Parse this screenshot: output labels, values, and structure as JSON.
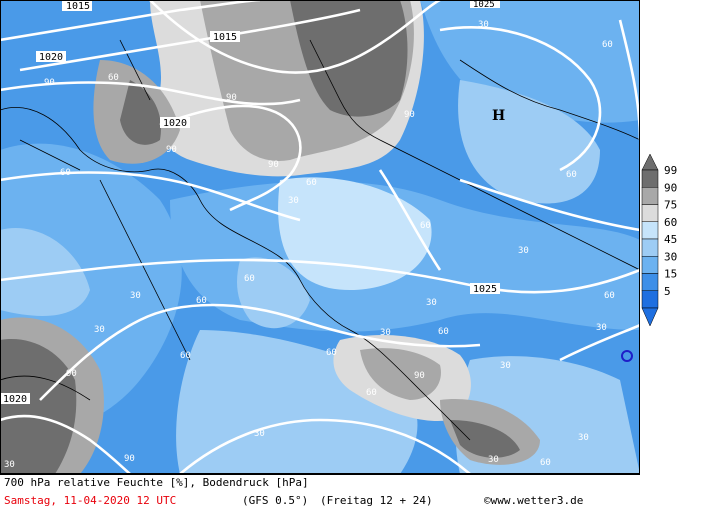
{
  "footer": {
    "line1": "700 hPa relative Feuchte [%], Bodendruck [hPa]",
    "date": "Samstag, 11-04-2020  12 UTC",
    "model": "(GFS 0.5°)",
    "forecast": "(Freitag 12 + 24)",
    "copyright": "©www.wetter3.de"
  },
  "legend": {
    "values": [
      "99",
      "90",
      "75",
      "60",
      "45",
      "30",
      "15",
      "5"
    ],
    "colors": [
      "#6e6e6e",
      "#a8a8a8",
      "#dcdcdc",
      "#c6e4fb",
      "#9dccf4",
      "#6cb2f0",
      "#3d8fe8",
      "#1e6fe0"
    ]
  },
  "pressure_labels": [
    "1015",
    "1015",
    "1020",
    "1020",
    "1025",
    "1020",
    "1025"
  ],
  "humidity_labels": [
    "90",
    "60",
    "30",
    "15"
  ],
  "high_marker": "H",
  "colors": {
    "sea_blue": "#4a9ae8",
    "dark_grey": "#6e6e6e",
    "mid_grey": "#a8a8a8",
    "light_grey": "#dcdcdc",
    "pale_blue": "#c6e4fb",
    "isobar": "#ffffff",
    "coast": "#000000",
    "contour": "#3a3ad0",
    "date_red": "#e8000b"
  }
}
